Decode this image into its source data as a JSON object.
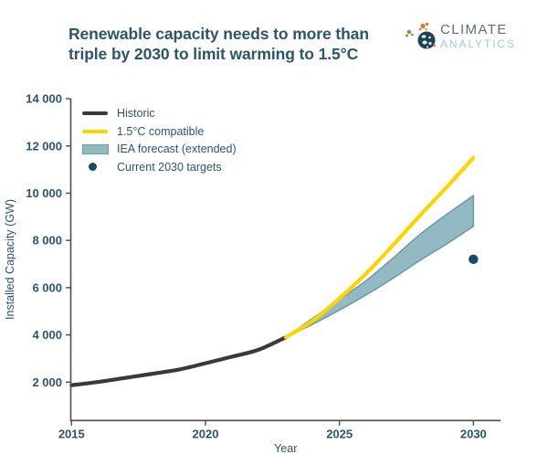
{
  "header": {
    "title_line1": "Renewable capacity needs to more than",
    "title_line2": "triple by 2030 to limit warming to 1.5°C",
    "logo": {
      "line1": "CLIMATE",
      "line2": "ANALYTICS"
    }
  },
  "colors": {
    "title_text": "#2d5469",
    "axis_line": "#4c4c4c",
    "historic_line": "#3a3a3a",
    "compatible_line": "#fcd500",
    "iea_band_fill": "#93bac2",
    "iea_band_stroke": "#6f9ca4",
    "target_dot": "#1b4a63",
    "logo_gray": "#626c75",
    "logo_blue": "#a6cad7",
    "logo_orange": "#e8772e",
    "logo_green": "#71a33f",
    "logo_globe": "#1d4257"
  },
  "chart_data": {
    "type": "line",
    "title": "Renewable capacity needs to more than triple by 2030 to limit warming to 1.5°C",
    "xlabel": "Year",
    "ylabel": "Installed Capacity (GW)",
    "xlim": [
      2015,
      2031
    ],
    "ylim": [
      400,
      14000
    ],
    "grid": false,
    "x_ticks": [
      2015,
      2020,
      2025,
      2030
    ],
    "y_ticks": [
      {
        "value": 2000,
        "label": "2 000"
      },
      {
        "value": 4000,
        "label": "4 000"
      },
      {
        "value": 6000,
        "label": "6 000"
      },
      {
        "value": 8000,
        "label": "8 000"
      },
      {
        "value": 10000,
        "label": "10 000"
      },
      {
        "value": 12000,
        "label": "12 000"
      },
      {
        "value": 14000,
        "label": "14 000"
      }
    ],
    "series": [
      {
        "name": "Historic",
        "type": "line",
        "color": "#3a3a3a",
        "x": [
          2015,
          2016,
          2017,
          2018,
          2019,
          2020,
          2021,
          2022,
          2023
        ],
        "y": [
          1870,
          2010,
          2180,
          2350,
          2530,
          2800,
          3080,
          3380,
          3900
        ]
      },
      {
        "name": "1.5°C compatible",
        "type": "line",
        "color": "#fcd500",
        "x": [
          2023,
          2024,
          2025,
          2026,
          2027,
          2028,
          2029,
          2030
        ],
        "y": [
          3900,
          4600,
          5550,
          6600,
          7800,
          9050,
          10250,
          11500
        ]
      },
      {
        "name": "IEA forecast (extended)",
        "type": "band",
        "fill": "#93bac2",
        "stroke": "#6f9ca4",
        "x": [
          2023,
          2024,
          2025,
          2026,
          2027,
          2028,
          2029,
          2030
        ],
        "y_top": [
          3900,
          4700,
          5500,
          6300,
          7250,
          8250,
          9100,
          9900
        ],
        "y_bottom": [
          3900,
          4450,
          5050,
          5700,
          6400,
          7150,
          7850,
          8600
        ]
      },
      {
        "name": "Current 2030 targets",
        "type": "scatter",
        "color": "#1b4a63",
        "x": [
          2030
        ],
        "y": [
          7200
        ]
      }
    ],
    "legend": {
      "position": "upper-left",
      "entries": [
        {
          "label": "Historic",
          "swatch": "line",
          "color": "#3a3a3a"
        },
        {
          "label": "1.5°C compatible",
          "swatch": "line",
          "color": "#fcd500"
        },
        {
          "label": "IEA forecast (extended)",
          "swatch": "band",
          "color": "#93bac2"
        },
        {
          "label": "Current 2030 targets",
          "swatch": "point",
          "color": "#1b4a63"
        }
      ]
    }
  }
}
